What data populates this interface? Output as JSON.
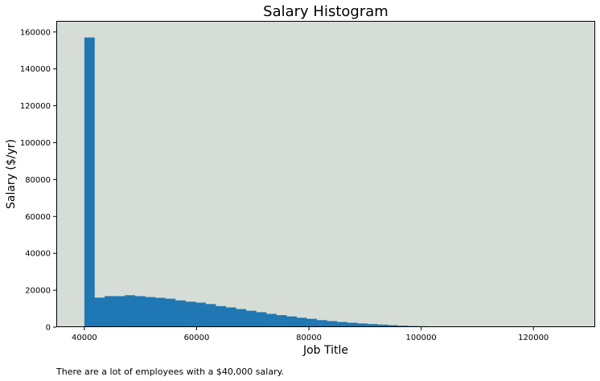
{
  "chart_data": {
    "type": "bar",
    "title": "Salary Histogram",
    "xlabel": "Job Title",
    "ylabel": "Salary ($/yr)",
    "xlim": [
      35000,
      131000
    ],
    "ylim": [
      0,
      166000
    ],
    "xticks": [
      40000,
      60000,
      80000,
      100000,
      120000
    ],
    "yticks": [
      0,
      20000,
      40000,
      60000,
      80000,
      100000,
      120000,
      140000,
      160000
    ],
    "bin_start": 40000,
    "bin_width": 1800,
    "values": [
      157000,
      16000,
      16800,
      16800,
      17300,
      16800,
      16300,
      15900,
      15400,
      14500,
      13800,
      13300,
      12500,
      11400,
      10700,
      9800,
      8900,
      8100,
      7200,
      6500,
      5800,
      5100,
      4500,
      3800,
      3300,
      2800,
      2400,
      2000,
      1700,
      1400,
      1100,
      800,
      600,
      500,
      400,
      300,
      200,
      150,
      100,
      80,
      60,
      40,
      30,
      20,
      15,
      10,
      8,
      5,
      3,
      2
    ],
    "grid": false,
    "colors": {
      "bar": "#1f77b4",
      "plot_background": "#d6ddd6",
      "axes": "#000000"
    }
  },
  "caption": "There are a lot of employees with a $40,000 salary."
}
